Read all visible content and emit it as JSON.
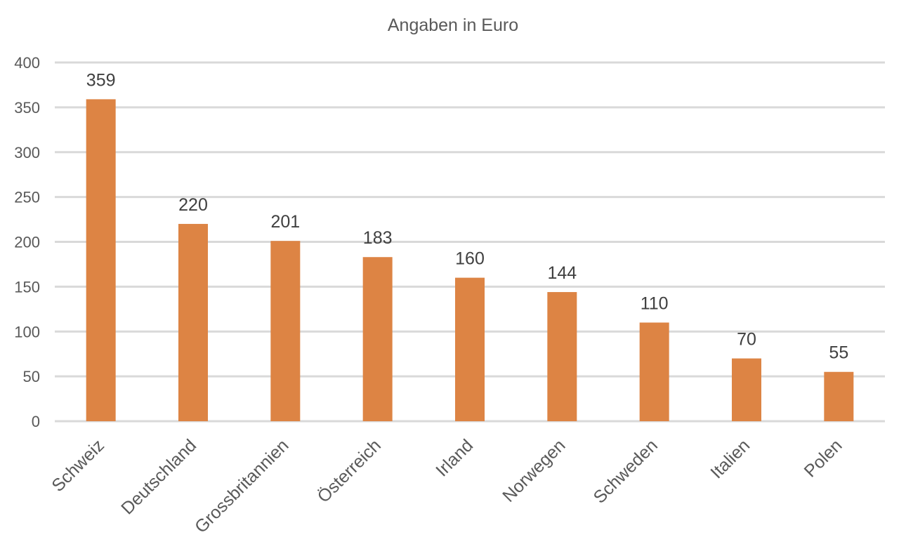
{
  "chart_data": {
    "type": "bar",
    "title": "Angaben in Euro",
    "xlabel": "",
    "ylabel": "",
    "categories": [
      "Schweiz",
      "Deutschland",
      "Grossbritannien",
      "Österreich",
      "Irland",
      "Norwegen",
      "Schweden",
      "Italien",
      "Polen"
    ],
    "values": [
      359,
      220,
      201,
      183,
      160,
      144,
      110,
      70,
      55
    ],
    "ylim": [
      0,
      400
    ],
    "yticks": [
      0,
      50,
      100,
      150,
      200,
      250,
      300,
      350,
      400
    ],
    "grid": true,
    "legend": "none",
    "data_labels": true,
    "bar_color": "#dd8444",
    "grid_color": "#d9d9d9",
    "text_color": "#595959"
  }
}
